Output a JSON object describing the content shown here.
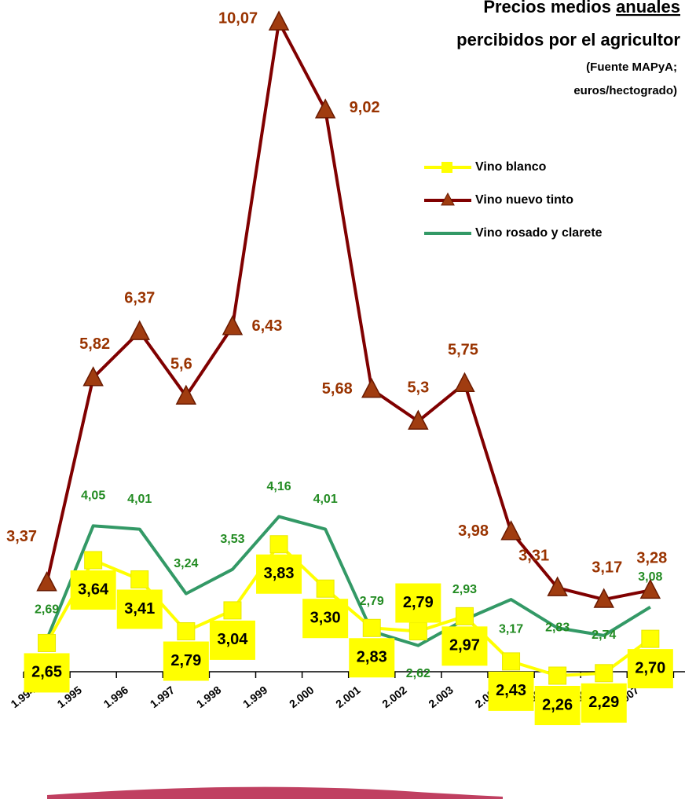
{
  "chart_data": {
    "type": "line",
    "title": [
      "Precios medios anuales",
      "percibidos por el agricultor"
    ],
    "subtitle": [
      "(Fuente MAPyA;",
      "euros/hectogrado)"
    ],
    "categories": [
      "1.994",
      "1.995",
      "1.996",
      "1.997",
      "1.998",
      "1.999",
      "2.000",
      "2.001",
      "2.002",
      "2.003",
      "2.004",
      "2.005",
      "2.006",
      "2.007"
    ],
    "series": [
      {
        "name": "Vino blanco",
        "color": "#ffff00",
        "marker": "square",
        "values": [
          2.65,
          3.64,
          3.41,
          2.79,
          3.04,
          3.83,
          3.3,
          2.83,
          2.79,
          2.97,
          2.43,
          2.26,
          2.29,
          2.7
        ],
        "value_labels": [
          "2,65",
          "3,64",
          "3,41",
          "2,79",
          "3,04",
          "3,83",
          "3,30",
          "2,83",
          "2,79",
          "2,97",
          "2,43",
          "2,26",
          "2,29",
          "2,70"
        ]
      },
      {
        "name": "Vino nuevo tinto",
        "color": "#800000",
        "marker": "triangle",
        "values": [
          3.37,
          5.82,
          6.37,
          5.6,
          6.43,
          10.07,
          9.02,
          5.68,
          5.3,
          5.75,
          3.98,
          3.31,
          3.17,
          3.28
        ],
        "value_labels": [
          "3,37",
          "5,82",
          "6,37",
          "5,6",
          "6,43",
          "10,07",
          "9,02",
          "5,68",
          "5,3",
          "5,75",
          "3,98",
          "3,31",
          "3,17",
          "3,28"
        ]
      },
      {
        "name": "Vino rosado y clarete",
        "color": "#339966",
        "marker": "none",
        "values": [
          2.69,
          4.05,
          4.01,
          3.24,
          3.53,
          4.16,
          4.01,
          2.79,
          2.62,
          2.93,
          3.17,
          2.83,
          2.74,
          3.08
        ],
        "value_labels": [
          "2,69",
          "4,05",
          "4,01",
          "3,24",
          "3,53",
          "4,16",
          "4,01",
          "2,79",
          "2,62",
          "2,93",
          "3,17",
          "2,83",
          "2,74",
          "3,08"
        ]
      }
    ]
  }
}
